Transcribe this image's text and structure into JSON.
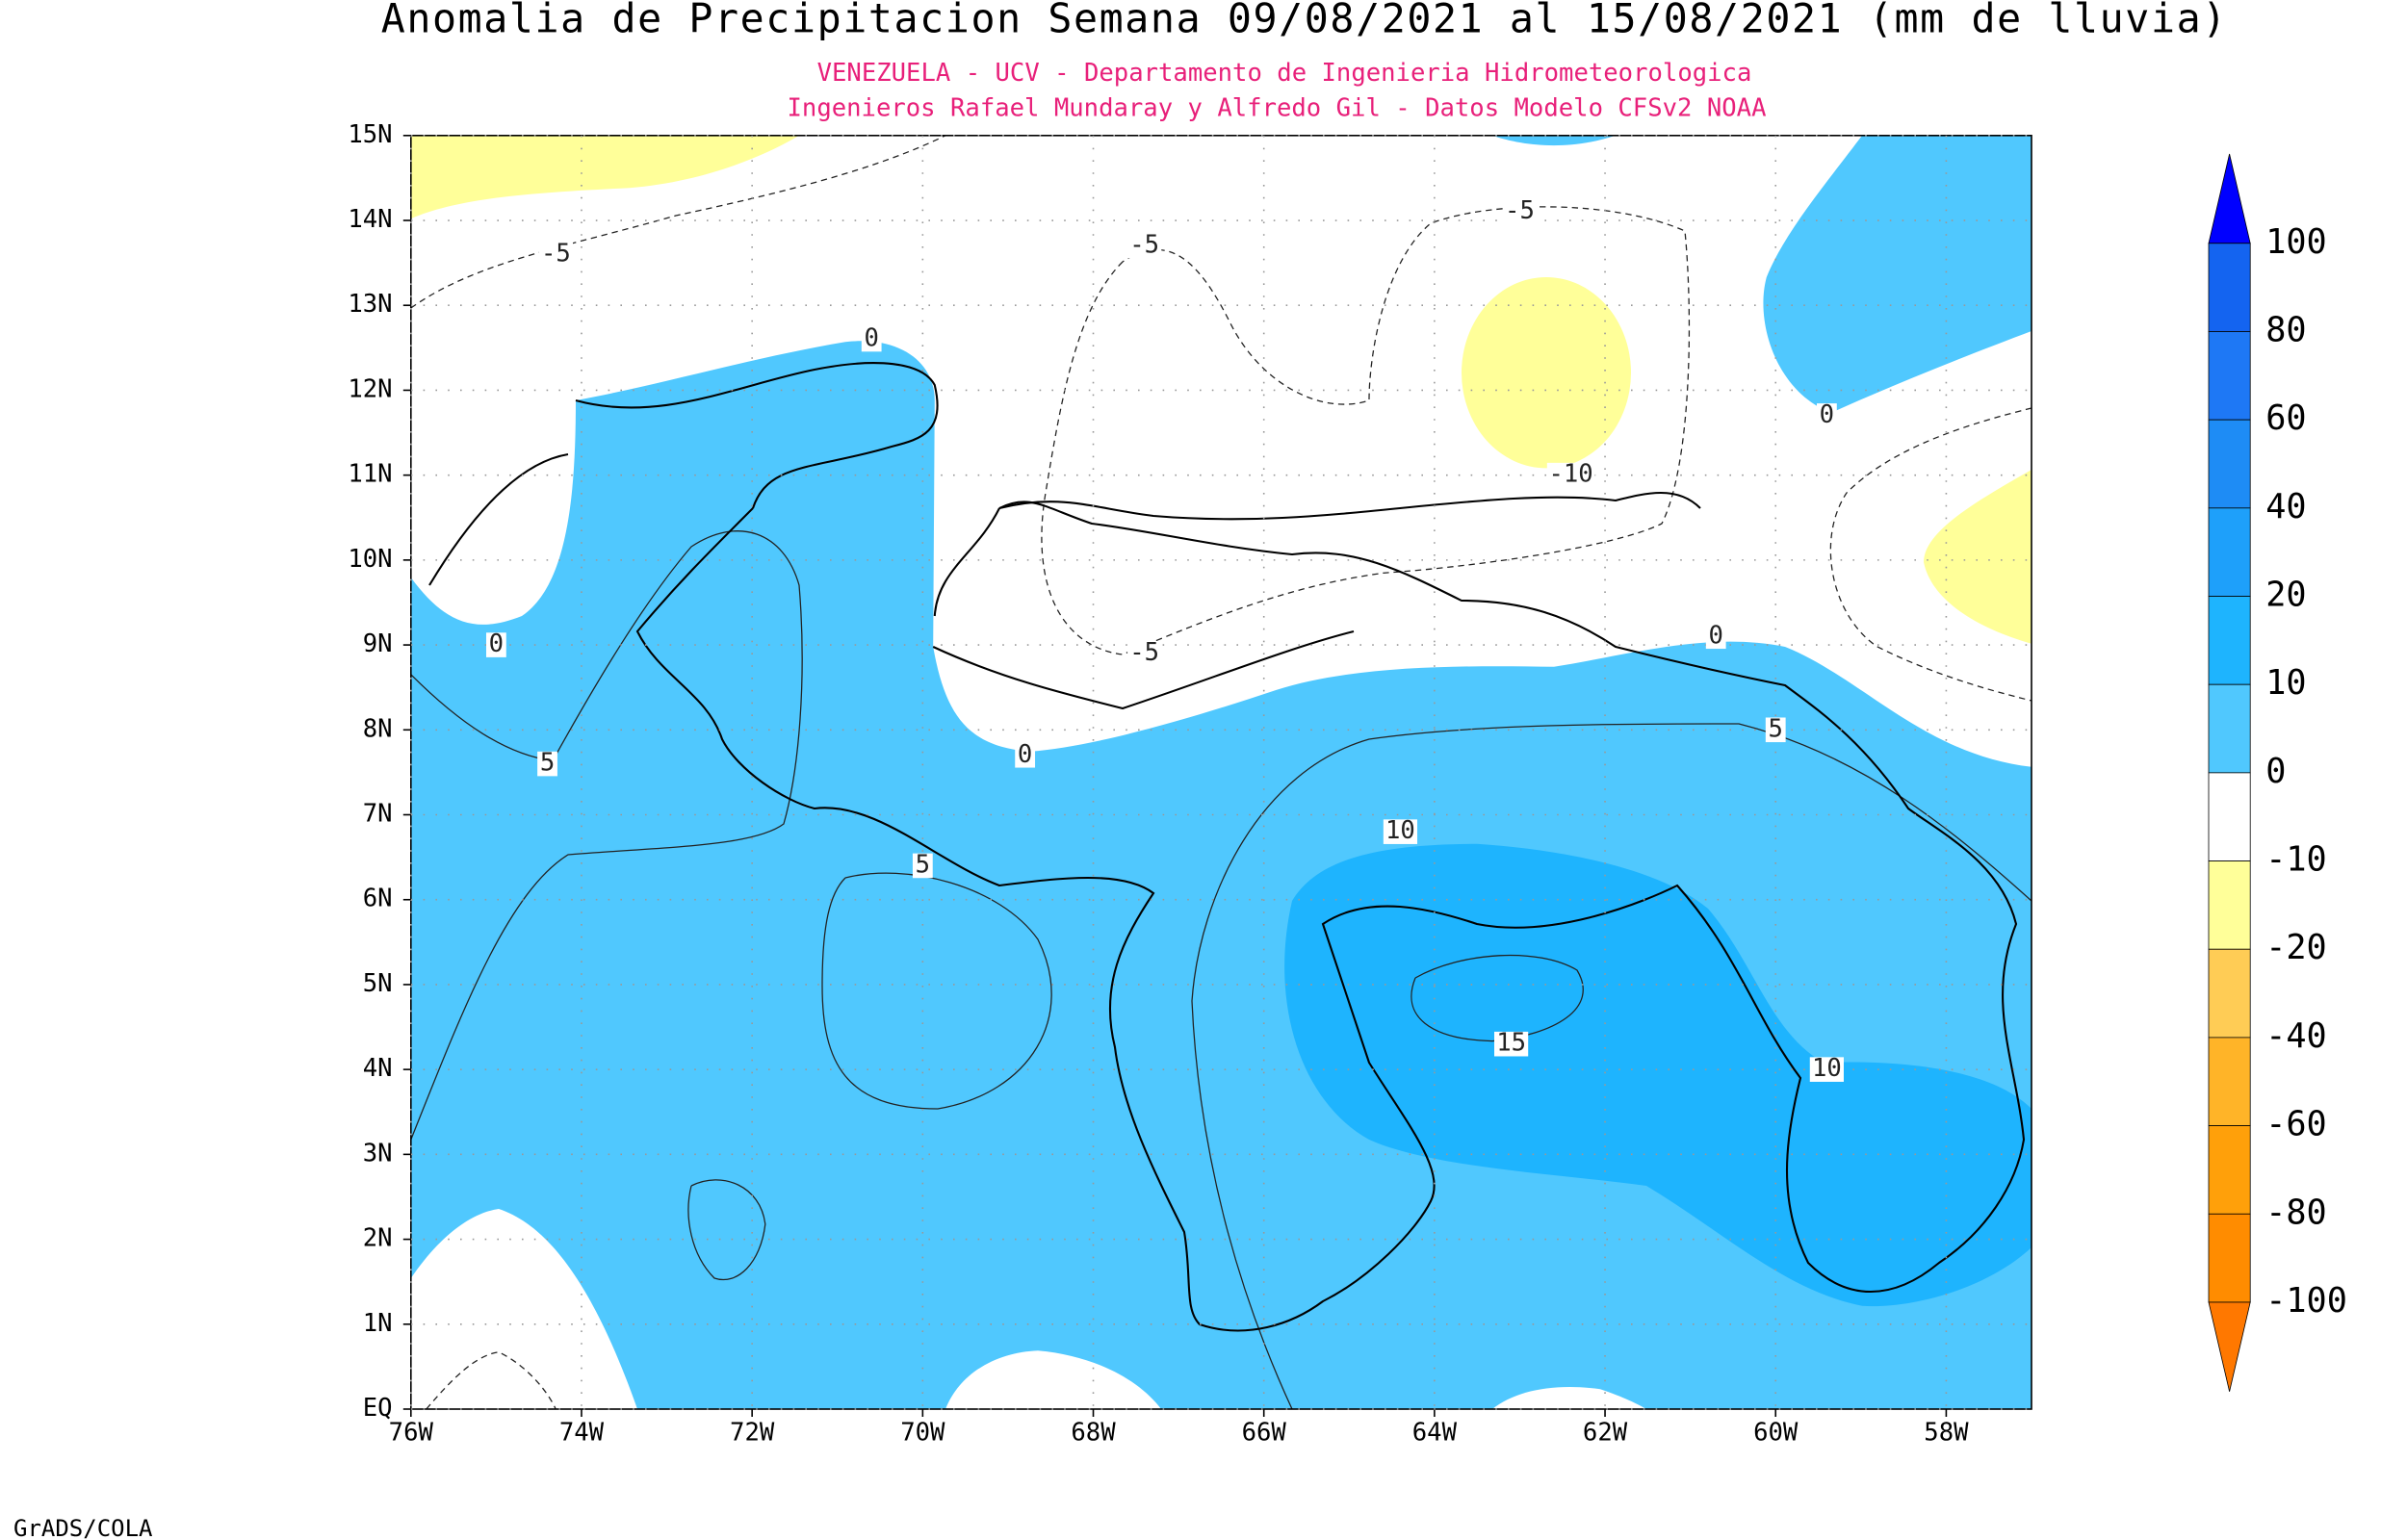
{
  "map": {
    "title": "Anomalia de Precipitacion Semana 09/08/2021 al 15/08/2021 (mm de lluvia)",
    "subtitle": [
      "VENEZUELA - UCV - Departamento de Ingenieria Hidrometeorologica",
      "Ingenieros Rafael Mundaray y Alfredo Gil - Datos Modelo CFSv2 NOAA"
    ],
    "credit": "GrADS/COLA",
    "xlim": [
      -76,
      -57
    ],
    "ylim": [
      0,
      15
    ],
    "xticks": [
      {
        "value": -76,
        "label": "76W"
      },
      {
        "value": -74,
        "label": "74W"
      },
      {
        "value": -72,
        "label": "72W"
      },
      {
        "value": -70,
        "label": "70W"
      },
      {
        "value": -68,
        "label": "68W"
      },
      {
        "value": -66,
        "label": "66W"
      },
      {
        "value": -64,
        "label": "64W"
      },
      {
        "value": -62,
        "label": "62W"
      },
      {
        "value": -60,
        "label": "60W"
      },
      {
        "value": -58,
        "label": "58W"
      }
    ],
    "yticks": [
      {
        "value": 0,
        "label": "EQ"
      },
      {
        "value": 1,
        "label": "1N"
      },
      {
        "value": 2,
        "label": "2N"
      },
      {
        "value": 3,
        "label": "3N"
      },
      {
        "value": 4,
        "label": "4N"
      },
      {
        "value": 5,
        "label": "5N"
      },
      {
        "value": 6,
        "label": "6N"
      },
      {
        "value": 7,
        "label": "7N"
      },
      {
        "value": 8,
        "label": "8N"
      },
      {
        "value": 9,
        "label": "9N"
      },
      {
        "value": 10,
        "label": "10N"
      },
      {
        "value": 11,
        "label": "11N"
      },
      {
        "value": 12,
        "label": "12N"
      },
      {
        "value": 13,
        "label": "13N"
      },
      {
        "value": 14,
        "label": "14N"
      },
      {
        "value": 15,
        "label": "15N"
      }
    ],
    "grid": true,
    "colorbar": {
      "levels": [
        100,
        80,
        60,
        40,
        20,
        10,
        0,
        -10,
        -20,
        -40,
        -60,
        -80,
        -100
      ],
      "colors": [
        "#0000ff",
        "#1464f0",
        "#1e78f5",
        "#1e8cf5",
        "#1ea0fa",
        "#1eb4fe",
        "#50c8fe",
        "#ffffff",
        "#ffff99",
        "#ffcc55",
        "#ffb428",
        "#ffa00a",
        "#ff8c00",
        "#ff7800"
      ]
    },
    "contour_labels": [
      {
        "value": 0,
        "lon": -70.6,
        "lat": 12.6
      },
      {
        "value": -5,
        "lon": -74.3,
        "lat": 13.6
      },
      {
        "value": -5,
        "lon": -67.4,
        "lat": 13.7
      },
      {
        "value": -5,
        "lon": -63.0,
        "lat": 14.1
      },
      {
        "value": 0,
        "lon": -59.4,
        "lat": 11.7
      },
      {
        "value": -10,
        "lon": -62.4,
        "lat": 11.0
      },
      {
        "value": 0,
        "lon": -75.0,
        "lat": 9.0
      },
      {
        "value": -5,
        "lon": -67.4,
        "lat": 8.9
      },
      {
        "value": 0,
        "lon": -60.7,
        "lat": 9.1
      },
      {
        "value": 5,
        "lon": -74.4,
        "lat": 7.6
      },
      {
        "value": 0,
        "lon": -68.8,
        "lat": 7.7
      },
      {
        "value": 5,
        "lon": -60.0,
        "lat": 8.0
      },
      {
        "value": 10,
        "lon": -64.4,
        "lat": 6.8
      },
      {
        "value": 5,
        "lon": -70.0,
        "lat": 6.4
      },
      {
        "value": 15,
        "lon": -63.1,
        "lat": 4.3
      },
      {
        "value": 10,
        "lon": -59.4,
        "lat": 4.0
      }
    ]
  }
}
